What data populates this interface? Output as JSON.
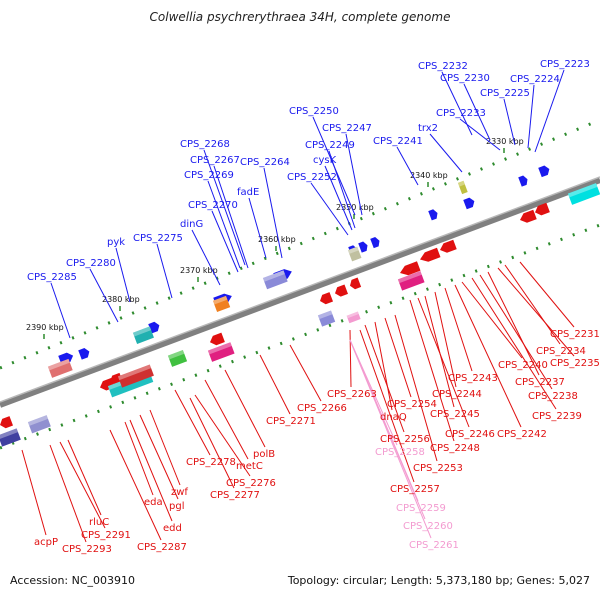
{
  "title": "Colwellia psychrerythraea 34H, complete genome",
  "accession": "Accession: NC_003910",
  "topology": "Topology: circular; Length: 5,373,180 bp; Genes: 5,027",
  "colors": {
    "forward": "#1a1aee",
    "reverse": "#e01010",
    "highlight": "#f39bd0",
    "backbone": "#808080"
  },
  "kbp_ticks": [
    "2330 kbp",
    "2340 kbp",
    "2350 kbp",
    "2360 kbp",
    "2370 kbp",
    "2380 kbp",
    "2390 kbp"
  ],
  "forward_labels": [
    "CPS_2232",
    "CPS_2230",
    "CPS_2225",
    "CPS_2224",
    "CPS_2223",
    "CPS_2233",
    "trx2",
    "CPS_2250",
    "CPS_2247",
    "CPS_2249",
    "cysK",
    "CPS_2252",
    "CPS_2241",
    "CPS_2268",
    "CPS_2267",
    "CPS_2269",
    "CPS_2264",
    "fadE",
    "CPS_2270",
    "dinG",
    "CPS_2275",
    "pyk",
    "CPS_2280",
    "CPS_2285"
  ],
  "reverse_labels": [
    "CPS_2231",
    "CPS_2234",
    "CPS_2235",
    "CPS_2237",
    "CPS_2238",
    "CPS_2239",
    "CPS_2240",
    "CPS_2242",
    "CPS_2243",
    "CPS_2244",
    "CPS_2245",
    "CPS_2246",
    "CPS_2248",
    "CPS_2253",
    "CPS_2254",
    "dnaQ",
    "CPS_2256",
    "CPS_2263",
    "CPS_2266",
    "CPS_2271",
    "polB",
    "metC",
    "CPS_2278",
    "CPS_2276",
    "CPS_2277",
    "zwf",
    "pgl",
    "edd",
    "eda",
    "CPS_2287",
    "rluC",
    "CPS_2291",
    "CPS_2293",
    "acpP",
    "CPS_2257"
  ],
  "highlight_labels": [
    "CPS_2258",
    "CPS_2259",
    "CPS_2260",
    "CPS_2261"
  ]
}
